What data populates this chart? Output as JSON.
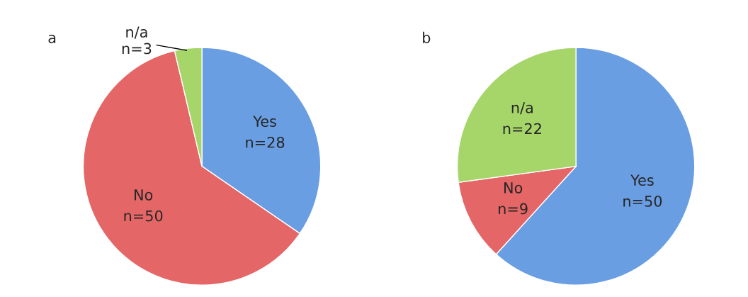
{
  "chart_data": [
    {
      "type": "pie",
      "title": "a",
      "categories": [
        "Yes",
        "No",
        "n/a"
      ],
      "values": [
        28,
        50,
        3
      ],
      "colors": [
        "#6a9ee3",
        "#e46666",
        "#a6d66a"
      ],
      "value_labels": [
        "n=28",
        "n=50",
        "n=3"
      ]
    },
    {
      "type": "pie",
      "title": "b",
      "categories": [
        "Yes",
        "No",
        "n/a"
      ],
      "values": [
        50,
        9,
        22
      ],
      "colors": [
        "#6a9ee3",
        "#e46666",
        "#a6d66a"
      ],
      "value_labels": [
        "n=50",
        "n=9",
        "n=22"
      ]
    }
  ]
}
